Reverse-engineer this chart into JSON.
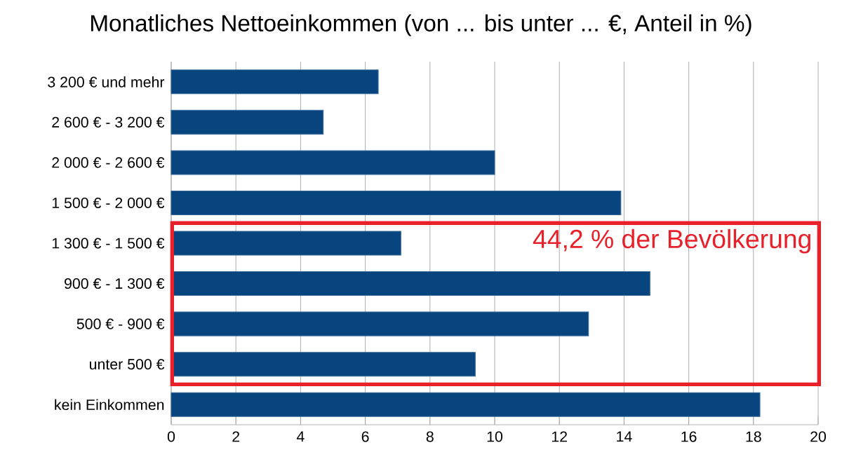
{
  "chart_data": {
    "type": "bar",
    "orientation": "horizontal",
    "title": "Monatliches Nettoeinkommen (von ... bis unter ... €, Anteil in %)",
    "categories": [
      "3 200 € und mehr",
      "2 600 € - 3 200 €",
      "2 000 € - 2 600 €",
      "1 500 € - 2 000 €",
      "1 300 € - 1 500 €",
      "900 € - 1 300 €",
      "500 € - 900 €",
      "unter 500 €",
      "kein Einkommen"
    ],
    "values": [
      6.4,
      4.7,
      10.0,
      13.9,
      7.1,
      14.8,
      12.9,
      9.4,
      18.2
    ],
    "color": "#08457e",
    "xlim": [
      0,
      20
    ],
    "xticks": [
      0,
      2,
      4,
      6,
      8,
      10,
      12,
      14,
      16,
      18,
      20
    ],
    "grid": "x",
    "annotations": [
      "44,2 % der Bevölkerung"
    ]
  }
}
